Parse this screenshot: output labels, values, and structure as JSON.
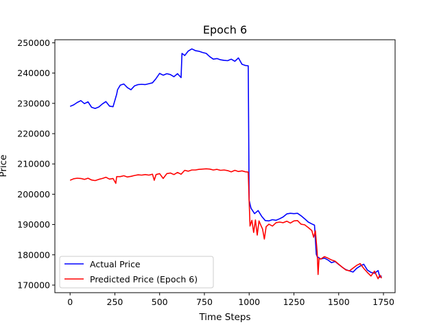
{
  "chart_data": {
    "type": "line",
    "title": "Epoch 6",
    "xlabel": "Time Steps",
    "ylabel": "Price",
    "xlim": [
      -85,
      1815
    ],
    "ylim": [
      167500,
      251000
    ],
    "xticks": [
      0,
      250,
      500,
      750,
      1000,
      1250,
      1500,
      1750
    ],
    "yticks": [
      170000,
      180000,
      190000,
      200000,
      210000,
      220000,
      230000,
      240000,
      250000
    ],
    "xtick_labels": [
      "0",
      "250",
      "500",
      "750",
      "1000",
      "1250",
      "1500",
      "1750"
    ],
    "ytick_labels": [
      "170000",
      "180000",
      "190000",
      "200000",
      "210000",
      "220000",
      "230000",
      "240000",
      "250000"
    ],
    "grid": false,
    "legend_position": "lower-left",
    "series": [
      {
        "name": "Actual Price",
        "color": "#0000ff",
        "x": [
          0,
          20,
          40,
          60,
          80,
          100,
          120,
          140,
          160,
          180,
          200,
          220,
          240,
          260,
          265,
          280,
          300,
          320,
          340,
          360,
          380,
          400,
          420,
          440,
          460,
          480,
          500,
          520,
          540,
          560,
          580,
          600,
          620,
          625,
          640,
          660,
          680,
          700,
          720,
          740,
          760,
          780,
          800,
          820,
          840,
          860,
          880,
          900,
          920,
          940,
          960,
          980,
          995,
          1000,
          1010,
          1030,
          1050,
          1070,
          1090,
          1110,
          1130,
          1150,
          1170,
          1190,
          1210,
          1230,
          1250,
          1270,
          1290,
          1310,
          1330,
          1350,
          1365,
          1375,
          1380,
          1400,
          1420,
          1440,
          1460,
          1480,
          1500,
          1520,
          1540,
          1560,
          1580,
          1600,
          1620,
          1640,
          1660,
          1680,
          1700,
          1720,
          1730,
          1740
        ],
        "values": [
          229000,
          229500,
          230300,
          230900,
          229900,
          230500,
          228700,
          228300,
          228800,
          229800,
          230600,
          229100,
          228900,
          233000,
          234500,
          236000,
          236400,
          235200,
          234500,
          235800,
          236200,
          236300,
          236200,
          236500,
          236800,
          238200,
          239900,
          239300,
          239800,
          239500,
          238800,
          239800,
          238500,
          246500,
          245800,
          247300,
          248000,
          247400,
          247200,
          246800,
          246500,
          245400,
          244600,
          244800,
          244400,
          244200,
          244100,
          244600,
          243900,
          245000,
          242900,
          242500,
          242400,
          198000,
          195400,
          193600,
          194600,
          192700,
          191300,
          191200,
          191600,
          191400,
          191900,
          192500,
          193500,
          193700,
          193600,
          193700,
          192900,
          191900,
          190800,
          190200,
          189800,
          180200,
          179400,
          178600,
          178900,
          178300,
          177400,
          177800,
          176800,
          175900,
          175100,
          174700,
          174300,
          175500,
          176300,
          176900,
          175000,
          174200,
          173900,
          174800,
          172600,
          173100
        ]
      },
      {
        "name": "Predicted Price (Epoch 6)",
        "color": "#ff0000",
        "x": [
          0,
          20,
          40,
          60,
          80,
          100,
          120,
          140,
          160,
          180,
          200,
          220,
          240,
          255,
          260,
          280,
          300,
          320,
          340,
          360,
          380,
          400,
          420,
          440,
          460,
          470,
          480,
          500,
          520,
          540,
          560,
          580,
          600,
          620,
          640,
          660,
          680,
          700,
          720,
          740,
          760,
          780,
          800,
          820,
          840,
          860,
          880,
          900,
          920,
          940,
          960,
          980,
          995,
          1000,
          1005,
          1015,
          1025,
          1035,
          1045,
          1055,
          1065,
          1075,
          1085,
          1095,
          1110,
          1130,
          1150,
          1170,
          1190,
          1210,
          1230,
          1250,
          1270,
          1290,
          1310,
          1330,
          1350,
          1360,
          1370,
          1380,
          1385,
          1390,
          1400,
          1420,
          1440,
          1460,
          1480,
          1500,
          1520,
          1540,
          1560,
          1580,
          1600,
          1620,
          1640,
          1660,
          1680,
          1700,
          1720,
          1730,
          1740
        ],
        "values": [
          204600,
          205100,
          205300,
          205200,
          204900,
          205300,
          204700,
          204500,
          204900,
          205200,
          205600,
          205000,
          205200,
          203600,
          205800,
          205800,
          206100,
          205700,
          205900,
          206200,
          206400,
          206300,
          206500,
          206300,
          206600,
          204600,
          206500,
          206800,
          205200,
          206800,
          207000,
          206500,
          207200,
          206600,
          207900,
          207600,
          208000,
          208000,
          208200,
          208300,
          208400,
          208300,
          208000,
          208200,
          207900,
          208000,
          207800,
          207400,
          207900,
          207500,
          207700,
          207400,
          207300,
          198000,
          189500,
          191400,
          187400,
          191500,
          186500,
          191200,
          189800,
          188500,
          185200,
          189300,
          190100,
          189500,
          190600,
          190800,
          190600,
          191100,
          190500,
          191200,
          191300,
          190100,
          189900,
          189000,
          188000,
          185800,
          187900,
          180800,
          173500,
          178800,
          178600,
          179400,
          178900,
          178300,
          177900,
          176900,
          175900,
          175000,
          174700,
          175600,
          176500,
          177100,
          175500,
          174200,
          173000,
          174600,
          172100,
          173300,
          172300
        ]
      }
    ]
  }
}
